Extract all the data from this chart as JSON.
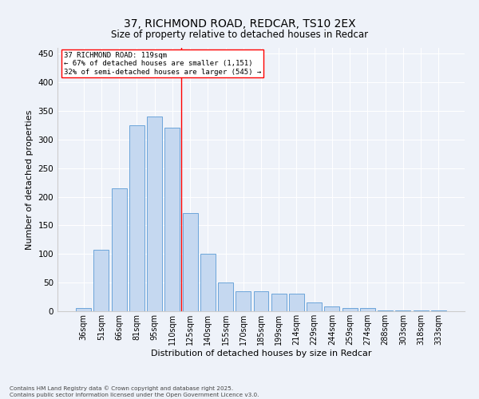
{
  "title_line1": "37, RICHMOND ROAD, REDCAR, TS10 2EX",
  "title_line2": "Size of property relative to detached houses in Redcar",
  "xlabel": "Distribution of detached houses by size in Redcar",
  "ylabel": "Number of detached properties",
  "categories": [
    "36sqm",
    "51sqm",
    "66sqm",
    "81sqm",
    "95sqm",
    "110sqm",
    "125sqm",
    "140sqm",
    "155sqm",
    "170sqm",
    "185sqm",
    "199sqm",
    "214sqm",
    "229sqm",
    "244sqm",
    "259sqm",
    "274sqm",
    "288sqm",
    "303sqm",
    "318sqm",
    "333sqm"
  ],
  "values": [
    5,
    107,
    215,
    325,
    340,
    320,
    172,
    100,
    50,
    35,
    35,
    30,
    30,
    15,
    8,
    5,
    5,
    2,
    1,
    1,
    1
  ],
  "bar_color": "#c5d8f0",
  "bar_edge_color": "#5b9bd5",
  "vline_x": 5.5,
  "annotation_line1": "37 RICHMOND ROAD: 119sqm",
  "annotation_line2": "← 67% of detached houses are smaller (1,151)",
  "annotation_line3": "32% of semi-detached houses are larger (545) →",
  "ylim": [
    0,
    460
  ],
  "yticks": [
    0,
    50,
    100,
    150,
    200,
    250,
    300,
    350,
    400,
    450
  ],
  "bg_color": "#eef2f9",
  "footer_line1": "Contains HM Land Registry data © Crown copyright and database right 2025.",
  "footer_line2": "Contains public sector information licensed under the Open Government Licence v3.0."
}
